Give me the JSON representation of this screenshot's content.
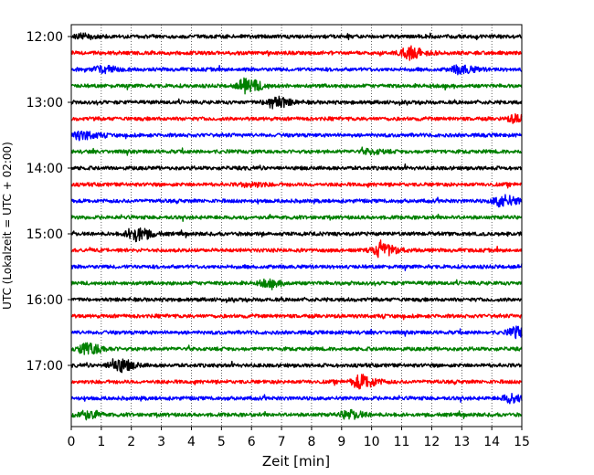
{
  "chart_data": {
    "type": "line",
    "title": "",
    "xlabel": "Zeit  [min]",
    "ylabel": "UTC (Lokalzeit = UTC + 02:00)",
    "xlim": [
      0,
      15
    ],
    "x_ticks": [
      "0",
      "1",
      "2",
      "3",
      "4",
      "5",
      "6",
      "7",
      "8",
      "9",
      "10",
      "11",
      "12",
      "13",
      "14",
      "15"
    ],
    "y_tick_labels": [
      "12:00",
      "13:00",
      "14:00",
      "15:00",
      "16:00",
      "17:00"
    ],
    "row_interval_min": 15,
    "start_time": "12:00",
    "row_count": 24,
    "colors": [
      "#000000",
      "#ff0000",
      "#0000ff",
      "#008000"
    ],
    "grid": "vertical dotted",
    "events": [
      {
        "row": 0,
        "x": 0.3,
        "amp": 2
      },
      {
        "row": 1,
        "x": 11.2,
        "amp": 6
      },
      {
        "row": 2,
        "x": 1.0,
        "amp": 3
      },
      {
        "row": 2,
        "x": 12.9,
        "amp": 4
      },
      {
        "row": 3,
        "x": 5.8,
        "amp": 7
      },
      {
        "row": 4,
        "x": 6.7,
        "amp": 6
      },
      {
        "row": 5,
        "x": 14.8,
        "amp": 4
      },
      {
        "row": 6,
        "x": 0.3,
        "amp": 4
      },
      {
        "row": 7,
        "x": 9.9,
        "amp": 2
      },
      {
        "row": 9,
        "x": 5.9,
        "amp": 2
      },
      {
        "row": 10,
        "x": 14.3,
        "amp": 6
      },
      {
        "row": 12,
        "x": 2.1,
        "amp": 7
      },
      {
        "row": 13,
        "x": 10.3,
        "amp": 7
      },
      {
        "row": 15,
        "x": 6.5,
        "amp": 3
      },
      {
        "row": 18,
        "x": 14.8,
        "amp": 5
      },
      {
        "row": 19,
        "x": 0.5,
        "amp": 6
      },
      {
        "row": 20,
        "x": 1.5,
        "amp": 7
      },
      {
        "row": 21,
        "x": 9.6,
        "amp": 7
      },
      {
        "row": 22,
        "x": 14.6,
        "amp": 4
      },
      {
        "row": 23,
        "x": 0.4,
        "amp": 4
      },
      {
        "row": 23,
        "x": 9.2,
        "amp": 4
      }
    ]
  }
}
